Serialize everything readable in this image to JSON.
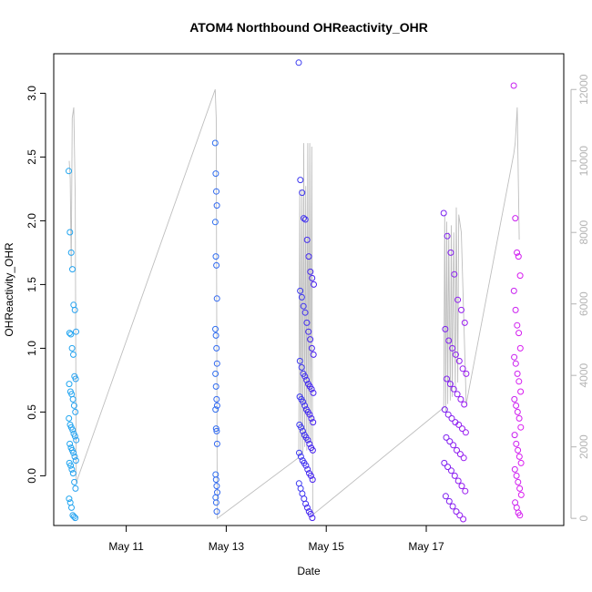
{
  "chart_data": {
    "type": "scatter",
    "title": "ATOM4 Northbound OHReactivity_OHR",
    "xlabel": "Date",
    "ylabel": "OHReactivity_OHR",
    "xlim": [
      9.55,
      19.75
    ],
    "ylim": [
      -0.39,
      3.31
    ],
    "x_ticks": [
      {
        "value": 11,
        "label": "May 11"
      },
      {
        "value": 13,
        "label": "May 13"
      },
      {
        "value": 15,
        "label": "May 15"
      },
      {
        "value": 17,
        "label": "May 17"
      }
    ],
    "y_ticks": [
      0.0,
      0.5,
      1.0,
      1.5,
      2.0,
      2.5,
      3.0
    ],
    "y2_ticks": [
      0,
      2000,
      4000,
      6000,
      8000,
      10000,
      12000
    ],
    "y2lim": [
      -200,
      13000
    ],
    "series": [
      {
        "name": "OHReactivity_OHR",
        "kind": "points",
        "clusters": [
          {
            "x_start": 9.85,
            "x_end": 10.0,
            "color_from": "#1fa6f0",
            "color_to": "#29a1f0",
            "values": [
              2.39,
              1.91,
              1.75,
              1.62,
              1.34,
              1.3,
              1.13,
              1.12,
              1.11,
              1.0,
              0.95,
              0.78,
              0.76,
              0.72,
              0.66,
              0.64,
              0.6,
              0.55,
              0.5,
              0.45,
              0.4,
              0.38,
              0.36,
              0.33,
              0.31,
              0.28,
              0.25,
              0.22,
              0.2,
              0.18,
              0.15,
              0.12,
              0.1,
              0.08,
              0.05,
              0.02,
              -0.05,
              -0.1,
              -0.18,
              -0.21,
              -0.25,
              -0.31,
              -0.32,
              -0.33
            ]
          },
          {
            "x_start": 12.78,
            "x_end": 12.82,
            "color_from": "#2f6ff0",
            "color_to": "#3468f0",
            "values": [
              2.61,
              2.37,
              2.23,
              2.12,
              1.99,
              1.72,
              1.65,
              1.39,
              1.15,
              1.1,
              1.0,
              0.88,
              0.8,
              0.7,
              0.6,
              0.55,
              0.52,
              0.37,
              0.35,
              0.25,
              0.01,
              -0.03,
              -0.08,
              -0.13,
              -0.17,
              -0.21,
              -0.28
            ]
          },
          {
            "x_start": 14.45,
            "x_end": 14.75,
            "color_from": "#3c3cf0",
            "color_to": "#4a22f0",
            "values": [
              3.24,
              2.32,
              2.22,
              2.02,
              2.01,
              1.85,
              1.72,
              1.6,
              1.55,
              1.5,
              1.45,
              1.4,
              1.33,
              1.28,
              1.2,
              1.13,
              1.07,
              1.0,
              0.95,
              0.9,
              0.85,
              0.8,
              0.78,
              0.75,
              0.72,
              0.7,
              0.68,
              0.65,
              0.62,
              0.6,
              0.58,
              0.55,
              0.52,
              0.5,
              0.48,
              0.45,
              0.42,
              0.4,
              0.38,
              0.35,
              0.32,
              0.3,
              0.28,
              0.25,
              0.22,
              0.2,
              0.18,
              0.15,
              0.12,
              0.1,
              0.08,
              0.05,
              0.02,
              0.0,
              -0.03,
              -0.06,
              -0.1,
              -0.14,
              -0.18,
              -0.22,
              -0.25,
              -0.28,
              -0.3,
              -0.33
            ]
          },
          {
            "x_start": 17.35,
            "x_end": 17.8,
            "color_from": "#7a1ff0",
            "color_to": "#9b1cf0",
            "values": [
              2.06,
              1.88,
              1.75,
              1.58,
              1.38,
              1.3,
              1.2,
              1.15,
              1.06,
              1.0,
              0.95,
              0.9,
              0.84,
              0.8,
              0.76,
              0.72,
              0.68,
              0.64,
              0.6,
              0.56,
              0.52,
              0.48,
              0.45,
              0.42,
              0.4,
              0.37,
              0.34,
              0.3,
              0.27,
              0.24,
              0.2,
              0.17,
              0.14,
              0.1,
              0.07,
              0.04,
              0.0,
              -0.04,
              -0.08,
              -0.12,
              -0.16,
              -0.2,
              -0.24,
              -0.28,
              -0.31,
              -0.34
            ]
          },
          {
            "x_start": 18.75,
            "x_end": 18.9,
            "color_from": "#c61ff0",
            "color_to": "#db1df0",
            "values": [
              3.06,
              2.02,
              1.75,
              1.72,
              1.57,
              1.45,
              1.3,
              1.18,
              1.12,
              1.0,
              0.93,
              0.88,
              0.8,
              0.74,
              0.66,
              0.6,
              0.55,
              0.5,
              0.45,
              0.38,
              0.32,
              0.25,
              0.2,
              0.15,
              0.1,
              0.05,
              0.0,
              -0.05,
              -0.1,
              -0.15,
              -0.21,
              -0.25,
              -0.29,
              -0.31
            ]
          }
        ]
      },
      {
        "name": "secondary",
        "kind": "line",
        "axis": "right",
        "color": "#bebebe",
        "points": [
          [
            9.86,
            10000
          ],
          [
            9.88,
            9500
          ],
          [
            9.9,
            7000
          ],
          [
            9.92,
            11200
          ],
          [
            9.95,
            11500
          ],
          [
            9.98,
            9000
          ],
          [
            10.0,
            1000
          ],
          [
            12.78,
            12000
          ],
          [
            12.8,
            11200
          ],
          [
            12.82,
            0
          ],
          [
            14.45,
            1700
          ],
          [
            14.47,
            9200
          ],
          [
            14.49,
            1800
          ],
          [
            14.51,
            9200
          ],
          [
            14.53,
            1800
          ],
          [
            14.55,
            10500
          ],
          [
            14.57,
            2000
          ],
          [
            14.59,
            9300
          ],
          [
            14.61,
            1900
          ],
          [
            14.63,
            10500
          ],
          [
            14.65,
            2100
          ],
          [
            14.67,
            10500
          ],
          [
            14.69,
            2100
          ],
          [
            14.71,
            10400
          ],
          [
            14.73,
            100
          ],
          [
            17.35,
            3100
          ],
          [
            17.37,
            8500
          ],
          [
            17.39,
            3000
          ],
          [
            17.41,
            8300
          ],
          [
            17.43,
            3200
          ],
          [
            17.45,
            8000
          ],
          [
            17.48,
            3300
          ],
          [
            17.5,
            8200
          ],
          [
            17.52,
            3400
          ],
          [
            17.55,
            8000
          ],
          [
            17.58,
            3600
          ],
          [
            17.6,
            8700
          ],
          [
            17.63,
            3800
          ],
          [
            17.65,
            8500
          ],
          [
            17.7,
            8000
          ],
          [
            17.8,
            3200
          ],
          [
            18.75,
            10200
          ],
          [
            18.78,
            10500
          ],
          [
            18.82,
            11500
          ],
          [
            18.86,
            7800
          ]
        ]
      }
    ]
  }
}
